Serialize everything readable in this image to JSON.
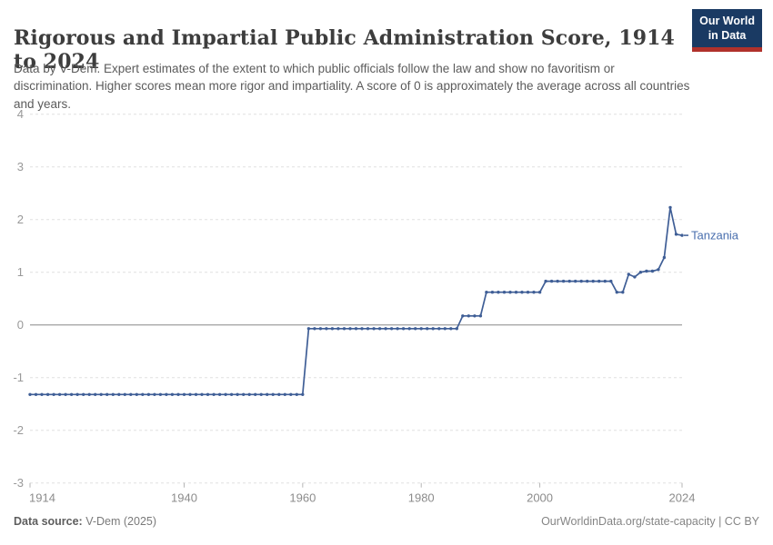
{
  "header": {
    "title": "Rigorous and Impartial Public Administration Score, 1914 to 2024",
    "subtitle": "Data by V-Dem. Expert estimates of the extent to which public officials follow the law and show no favoritism or discrimination. Higher scores mean more rigor and impartiality. A score of 0 is approximately the average across all countries and years.",
    "logo_line1": "Our World",
    "logo_line2": "in Data"
  },
  "chart_data": {
    "type": "line",
    "title": "Rigorous and Impartial Public Administration Score, 1914 to 2024",
    "xlabel": "",
    "ylabel": "",
    "xlim": [
      1914,
      2024
    ],
    "ylim": [
      -3,
      4
    ],
    "xticks": [
      1914,
      1940,
      1960,
      1980,
      2000,
      2024
    ],
    "yticks": [
      4,
      3,
      2,
      1,
      0,
      -1,
      -2,
      -3
    ],
    "grid": "horizontal-dashed",
    "zero_line": true,
    "legend_position": "end-of-line-label",
    "series": [
      {
        "name": "Tanzania",
        "color": "#3f5e96",
        "points": [
          [
            1914,
            -1.32
          ],
          [
            1915,
            -1.32
          ],
          [
            1916,
            -1.32
          ],
          [
            1917,
            -1.32
          ],
          [
            1918,
            -1.32
          ],
          [
            1919,
            -1.32
          ],
          [
            1920,
            -1.32
          ],
          [
            1921,
            -1.32
          ],
          [
            1922,
            -1.32
          ],
          [
            1923,
            -1.32
          ],
          [
            1924,
            -1.32
          ],
          [
            1925,
            -1.32
          ],
          [
            1926,
            -1.32
          ],
          [
            1927,
            -1.32
          ],
          [
            1928,
            -1.32
          ],
          [
            1929,
            -1.32
          ],
          [
            1930,
            -1.32
          ],
          [
            1931,
            -1.32
          ],
          [
            1932,
            -1.32
          ],
          [
            1933,
            -1.32
          ],
          [
            1934,
            -1.32
          ],
          [
            1935,
            -1.32
          ],
          [
            1936,
            -1.32
          ],
          [
            1937,
            -1.32
          ],
          [
            1938,
            -1.32
          ],
          [
            1939,
            -1.32
          ],
          [
            1940,
            -1.32
          ],
          [
            1941,
            -1.32
          ],
          [
            1942,
            -1.32
          ],
          [
            1943,
            -1.32
          ],
          [
            1944,
            -1.32
          ],
          [
            1945,
            -1.32
          ],
          [
            1946,
            -1.32
          ],
          [
            1947,
            -1.32
          ],
          [
            1948,
            -1.32
          ],
          [
            1949,
            -1.32
          ],
          [
            1950,
            -1.32
          ],
          [
            1951,
            -1.32
          ],
          [
            1952,
            -1.32
          ],
          [
            1953,
            -1.32
          ],
          [
            1954,
            -1.32
          ],
          [
            1955,
            -1.32
          ],
          [
            1956,
            -1.32
          ],
          [
            1957,
            -1.32
          ],
          [
            1958,
            -1.32
          ],
          [
            1959,
            -1.32
          ],
          [
            1960,
            -1.32
          ],
          [
            1961,
            -0.07
          ],
          [
            1962,
            -0.07
          ],
          [
            1963,
            -0.07
          ],
          [
            1964,
            -0.07
          ],
          [
            1965,
            -0.07
          ],
          [
            1966,
            -0.07
          ],
          [
            1967,
            -0.07
          ],
          [
            1968,
            -0.07
          ],
          [
            1969,
            -0.07
          ],
          [
            1970,
            -0.07
          ],
          [
            1971,
            -0.07
          ],
          [
            1972,
            -0.07
          ],
          [
            1973,
            -0.07
          ],
          [
            1974,
            -0.07
          ],
          [
            1975,
            -0.07
          ],
          [
            1976,
            -0.07
          ],
          [
            1977,
            -0.07
          ],
          [
            1978,
            -0.07
          ],
          [
            1979,
            -0.07
          ],
          [
            1980,
            -0.07
          ],
          [
            1981,
            -0.07
          ],
          [
            1982,
            -0.07
          ],
          [
            1983,
            -0.07
          ],
          [
            1984,
            -0.07
          ],
          [
            1985,
            -0.07
          ],
          [
            1986,
            -0.07
          ],
          [
            1987,
            0.17
          ],
          [
            1988,
            0.17
          ],
          [
            1989,
            0.17
          ],
          [
            1990,
            0.17
          ],
          [
            1991,
            0.62
          ],
          [
            1992,
            0.62
          ],
          [
            1993,
            0.62
          ],
          [
            1994,
            0.62
          ],
          [
            1995,
            0.62
          ],
          [
            1996,
            0.62
          ],
          [
            1997,
            0.62
          ],
          [
            1998,
            0.62
          ],
          [
            1999,
            0.62
          ],
          [
            2000,
            0.62
          ],
          [
            2001,
            0.83
          ],
          [
            2002,
            0.83
          ],
          [
            2003,
            0.83
          ],
          [
            2004,
            0.83
          ],
          [
            2005,
            0.83
          ],
          [
            2006,
            0.83
          ],
          [
            2007,
            0.83
          ],
          [
            2008,
            0.83
          ],
          [
            2009,
            0.83
          ],
          [
            2010,
            0.83
          ],
          [
            2011,
            0.83
          ],
          [
            2012,
            0.83
          ],
          [
            2013,
            0.62
          ],
          [
            2014,
            0.62
          ],
          [
            2015,
            0.96
          ],
          [
            2016,
            0.91
          ],
          [
            2017,
            1.0
          ],
          [
            2018,
            1.02
          ],
          [
            2019,
            1.02
          ],
          [
            2020,
            1.05
          ],
          [
            2021,
            1.28
          ],
          [
            2022,
            2.23
          ],
          [
            2023,
            1.72
          ],
          [
            2024,
            1.7
          ]
        ]
      }
    ]
  },
  "colors": {
    "line": "#3f5e96",
    "entity_label": "#4a6fae",
    "grid": "#e0e0e0",
    "zero_line": "#a8a8a8",
    "y_axis_text": "#999999",
    "x_axis_text": "#8c8c8c",
    "tick_mark": "#b5b5b5",
    "title_text": "#3d3d3d",
    "logo_bg": "#1a3a63",
    "logo_red": "#b0312b"
  },
  "footer": {
    "source_label": "Data source:",
    "source_value": " V-Dem (2025)",
    "credit": "OurWorldinData.org/state-capacity | CC BY"
  }
}
